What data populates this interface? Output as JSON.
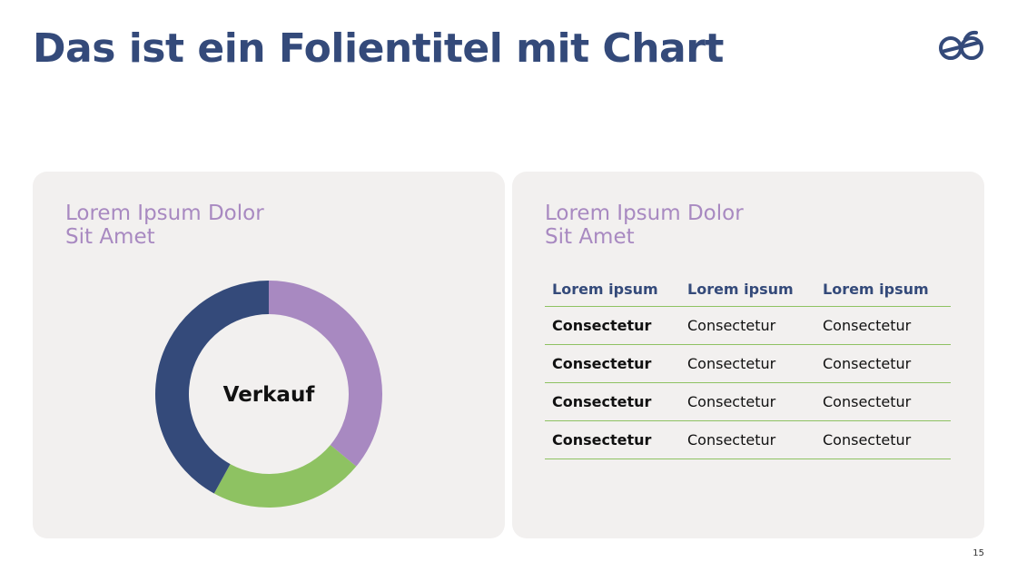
{
  "slide": {
    "title": "Das ist ein Folientitel mit Chart",
    "page_number": "15",
    "colors": {
      "title": "#344a7a",
      "accent_purple": "#a889c1",
      "accent_green": "#8ec262",
      "panel": "#f2f0ef"
    }
  },
  "left_panel": {
    "title_line1": "Lorem Ipsum Dolor",
    "title_line2": "Sit Amet"
  },
  "right_panel": {
    "title_line1": "Lorem Ipsum Dolor",
    "title_line2": "Sit Amet",
    "table": {
      "headers": [
        "Lorem ipsum",
        "Lorem ipsum",
        "Lorem ipsum"
      ],
      "rows": [
        [
          "Consectetur",
          "Consectetur",
          "Consectetur"
        ],
        [
          "Consectetur",
          "Consectetur",
          "Consectetur"
        ],
        [
          "Consectetur",
          "Consectetur",
          "Consectetur"
        ],
        [
          "Consectetur",
          "Consectetur",
          "Consectetur"
        ]
      ]
    }
  },
  "chart_data": {
    "type": "pie",
    "center_label": "Verkauf",
    "slices": [
      {
        "value": 36,
        "color": "#a889c1"
      },
      {
        "value": 22,
        "color": "#8ec262"
      },
      {
        "value": 42,
        "color": "#344a7a"
      }
    ]
  }
}
